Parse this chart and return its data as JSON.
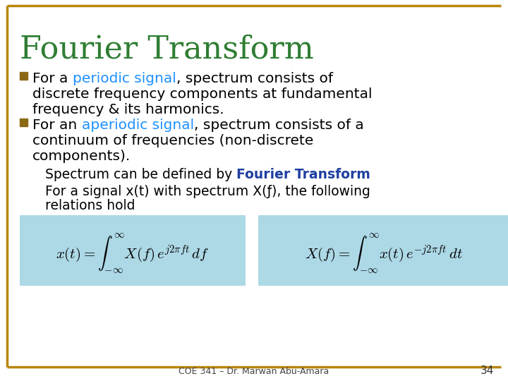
{
  "title": "Fourier Transform",
  "title_color": "#2E7D32",
  "title_fontsize": 32,
  "bg_color": "#FFFFFF",
  "border_color": "#B8860B",
  "bullet_color": "#8B6914",
  "bullet1_parts": [
    {
      "text": "For a ",
      "color": "#000000",
      "bold": false
    },
    {
      "text": "periodic signal",
      "color": "#1E90FF",
      "bold": false
    },
    {
      "text": ", spectrum consists of\ndiscrete frequency components at fundamental\nfrequency & its harmonics.",
      "color": "#000000",
      "bold": false
    }
  ],
  "bullet2_parts": [
    {
      "text": "For an ",
      "color": "#000000",
      "bold": false
    },
    {
      "text": "aperiodic signal",
      "color": "#1E90FF",
      "bold": false
    },
    {
      "text": ", spectrum consists of a\ncontinuum of frequencies (non-discrete\ncomponents).",
      "color": "#000000",
      "bold": false
    }
  ],
  "sub1": "Spectrum can be defined by ",
  "sub1_bold": "Fourier Transform",
  "sub1_bold_color": "#1E3EA0",
  "sub2": "For a signal x(t) with spectrum X(ƒ), the following\nrelations hold",
  "eq1": "x(t) = \\int_{-\\infty}^{\\infty} X(f)\\, e^{j2\\pi ft}\\, df",
  "eq2": "X(f) = \\int_{-\\infty}^{\\infty} x(t)\\, e^{-j2\\pi ft}\\, dt",
  "eq_bg": "#ADD8E6",
  "footer": "COE 341 – Dr. Marwan Abu-Amara",
  "page_num": "34",
  "text_fontsize": 14.5,
  "sub_fontsize": 13.5,
  "eq_fontsize": 15
}
